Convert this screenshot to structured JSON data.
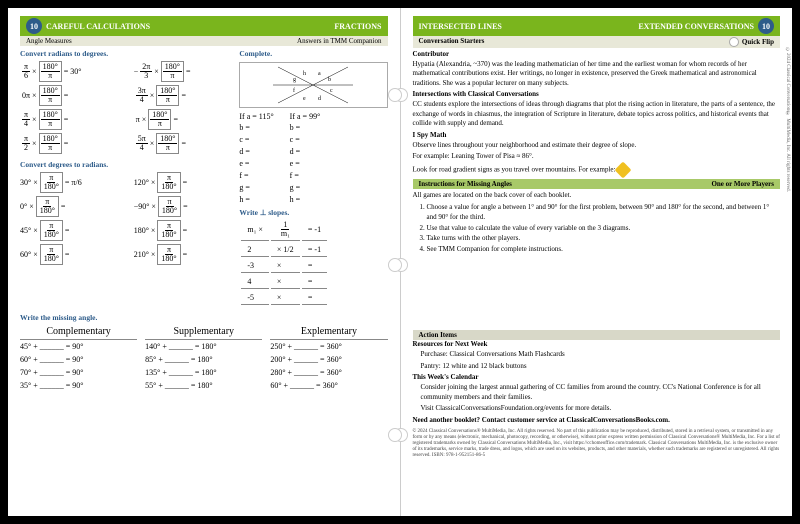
{
  "left": {
    "badge": "10",
    "title": "CAREFUL CALCULATIONS",
    "titleRight": "FRACTIONS",
    "sub1": "Angle Measures",
    "sub2": "Answers in TMM Companion",
    "sec1": "Convert radians to degrees.",
    "r2d": {
      "colA": [
        {
          "l": "π",
          "ld": "6",
          "res": "= 30°"
        },
        {
          "l": "0π",
          "ld": "",
          "res": ""
        },
        {
          "l": "π",
          "ld": "4",
          "res": ""
        },
        {
          "l": "π",
          "ld": "2",
          "res": ""
        }
      ],
      "colB": [
        {
          "l": "2π",
          "ld": "3",
          "neg": "−",
          "res": ""
        },
        {
          "l": "3π",
          "ld": "4",
          "res": ""
        },
        {
          "l": "π",
          "ld": "",
          "res": ""
        },
        {
          "l": "5π",
          "ld": "4",
          "res": ""
        }
      ],
      "frN": "180°",
      "frD": "π"
    },
    "sec2": "Convert degrees to radians.",
    "d2r": {
      "colA": [
        {
          "d": "30°",
          "res": "= π/6"
        },
        {
          "d": "0°",
          "res": ""
        },
        {
          "d": "45°",
          "res": ""
        },
        {
          "d": "60°",
          "res": ""
        }
      ],
      "colB": [
        {
          "d": "120°",
          "res": ""
        },
        {
          "d": "−90°",
          "res": ""
        },
        {
          "d": "180°",
          "res": ""
        },
        {
          "d": "210°",
          "res": ""
        }
      ],
      "frN": "π",
      "frD": "180°"
    },
    "complete": "Complete.",
    "ifA": "If a = 115°",
    "ifB": "If a = 99°",
    "vars": [
      "b =",
      "c =",
      "d =",
      "e =",
      "f =",
      "g =",
      "h ="
    ],
    "slopes": "Write ⊥ slopes.",
    "slopeHead": {
      "l": "m₁ ×",
      "m": "1",
      "md": "m₁",
      "r": "= -1"
    },
    "slopeRows": [
      {
        "a": "2",
        "b": "1/2",
        "r": "= -1"
      },
      {
        "a": "-3",
        "b": "",
        "r": "="
      },
      {
        "a": "4",
        "b": "",
        "r": "="
      },
      {
        "a": "-5",
        "b": "",
        "r": "="
      }
    ],
    "sec3": "Write the missing angle.",
    "angHdrs": [
      "Complementary",
      "Supplementary",
      "Explementary"
    ],
    "angRows": [
      [
        "45° + ______ = 90°",
        "140° + ______ = 180°",
        "250° + ______ = 360°"
      ],
      [
        "60° + ______ = 90°",
        "85° + ______ = 180°",
        "200° + ______ = 360°"
      ],
      [
        "70° + ______ = 90°",
        "135° + ______ = 180°",
        "280° + ______ = 360°"
      ],
      [
        "35° + ______ = 90°",
        "55° + ______ = 180°",
        "60° + ______ = 360°"
      ]
    ]
  },
  "right": {
    "title": "INTERSECTED LINES",
    "titleRight": "EXTENDED CONVERSATIONS",
    "badge": "10",
    "convStart": "Conversation Starters",
    "quickFlip": "Quick Flip",
    "contribHdr": "Contributor",
    "contrib": "Hypatia (Alexandria, ~370) was the leading mathematician of her time and the earliest woman for whom records of her mathematical contributions exist. Her writings, no longer in existence, preserved the Greek mathematical and astronomical traditions. She was a popular lecturer on many subjects.",
    "interHdr": "Intersections with Classical Conversations",
    "inter": "CC students explore the intersections of ideas through diagrams that plot the rising action in literature, the parts of a sentence, the exchange of words in chiasmus, the integration of Scripture in literature, debate topics across politics, and historical events that collide with supply and demand.",
    "ispyHdr": "I Spy Math",
    "ispy1": "Observe lines throughout your neighborhood and estimate their degree of slope.",
    "ispy2": "For example: Leaning Tower of Pisa ≈ 86°.",
    "ispy3": "Look for road gradient signs as you travel over mountains. For example:",
    "instrHdr": "Instructions for Missing Angles",
    "instrR": "One or More Players",
    "gamesNote": "All games are located on the back cover of each booklet.",
    "steps": [
      "Choose a value for angle a between 1° and 90° for the first problem, between 90° and 180° for the second, and between 1° and 90° for the third.",
      "Use that value to calculate the value of every variable on the 3 diagrams.",
      "Take turns with the other players.",
      "See TMM Companion for complete instructions."
    ],
    "actHdr": "Action Items",
    "resHdr": "Resources for Next Week",
    "res1": "Purchase: Classical Conversations Math Flashcards",
    "res2": "Pantry: 12 white and 12 black buttons",
    "weekHdr": "This Week's Calendar",
    "week1": "Consider joining the largest annual gathering of CC families from around the country. CC's National Conference is for all community members and their families.",
    "week2": "Visit ClassicalConversationsFoundation.org/events for more details.",
    "need": "Need another booklet? Contact customer service at ClassicalConversationsBooks.com.",
    "copyright": "© 2024 Classical Conversations® MultiMedia, Inc. All rights reserved. No part of this publication may be reproduced, distributed, stored in a retrieval system, or transmitted in any form or by any means (electronic, mechanical, photocopy, recording, or otherwise), without prior express written permission of Classical Conversations® MultiMedia, Inc. For a list of registered trademarks owned by Classical Conversations MultiMedia, Inc., visit https://cchomeoffice.com/trademark. Classical Conversations MultiMedia, Inc. is the exclusive owner of its trademarks, service marks, trade dress, and logos, which are used on its websites, products, and other materials, whether such trademarks are registered or unregistered. All rights reserved. ISBN: 978-1-952151-86-5",
    "vcopy": "©2024 Classical Conversations® MultiMedia, Inc. All rights reserved."
  },
  "colors": {
    "green": "#7ab51d",
    "blue": "#2e5c8a"
  }
}
